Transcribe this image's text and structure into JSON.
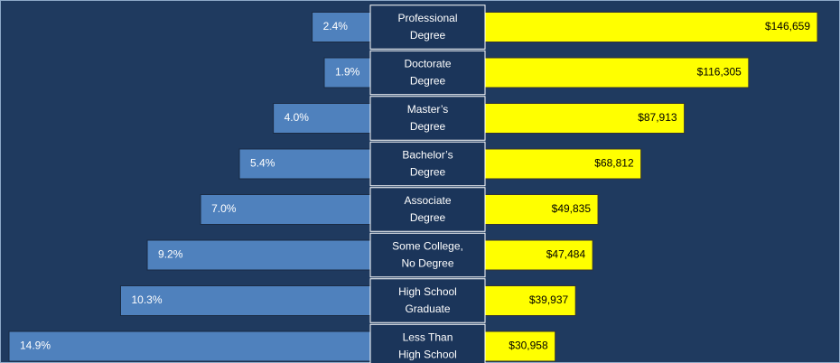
{
  "chart_data": {
    "type": "butterfly",
    "categories": [
      [
        "Professional",
        "Degree"
      ],
      [
        "Doctorate",
        "Degree"
      ],
      [
        "Master’s",
        "Degree"
      ],
      [
        "Bachelor’s",
        "Degree"
      ],
      [
        "Associate",
        "Degree"
      ],
      [
        "Some College,",
        "No Degree"
      ],
      [
        "High School",
        "Graduate"
      ],
      [
        "Less Than",
        "High School"
      ]
    ],
    "series": [
      {
        "color": "#4f81bd",
        "values": [
          2.4,
          1.9,
          4.0,
          5.4,
          7.0,
          9.2,
          10.3,
          14.9
        ],
        "value_labels": [
          "2.4%",
          "1.9%",
          "4.0%",
          "5.4%",
          "7.0%",
          "9.2%",
          "10.3%",
          "14.9%"
        ]
      },
      {
        "color": "#ffff00",
        "values": [
          146659,
          116305,
          87913,
          68812,
          49835,
          47484,
          39937,
          30958
        ],
        "value_labels": [
          "$146,659",
          "$116,305",
          "$87,913",
          "$68,812",
          "$49,835",
          "$47,484",
          "$39,937",
          "$30,958"
        ]
      }
    ]
  }
}
